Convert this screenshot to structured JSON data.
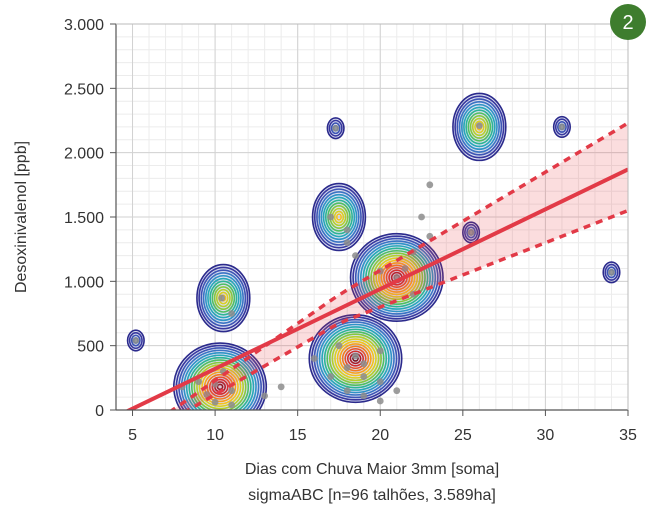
{
  "chart_data": {
    "type": "scatter",
    "badge": "2",
    "xlabel": "Dias com Chuva Maior 3mm [soma]",
    "subtitle": "sigmaABC [n=96 talhões, 3.589ha]",
    "ylabel": "Desoxinivalenol [ppb]",
    "xlim": [
      4,
      35
    ],
    "ylim": [
      0,
      3000
    ],
    "x_ticks": [
      5,
      10,
      15,
      20,
      25,
      30,
      35
    ],
    "x_tick_labels": [
      "5",
      "10",
      "15",
      "20",
      "25",
      "30",
      "35"
    ],
    "y_ticks": [
      0,
      500,
      1000,
      1500,
      2000,
      2500,
      3000
    ],
    "y_tick_labels": [
      "0",
      "500",
      "1.000",
      "1.500",
      "2.000",
      "2.500",
      "3.000"
    ],
    "grid": true,
    "regression": {
      "slope": 62,
      "intercept": -300,
      "ci_upper_at_35": 2230,
      "ci_lower_at_35": 1550
    },
    "density_peaks": [
      {
        "x": 10.3,
        "y": 180,
        "size": "large"
      },
      {
        "x": 10.5,
        "y": 870,
        "size": "medium"
      },
      {
        "x": 17.5,
        "y": 1500,
        "size": "medium"
      },
      {
        "x": 18.5,
        "y": 400,
        "size": "large"
      },
      {
        "x": 21,
        "y": 1030,
        "size": "large"
      },
      {
        "x": 17.3,
        "y": 2190,
        "size": "small"
      },
      {
        "x": 26,
        "y": 2200,
        "size": "medium"
      },
      {
        "x": 31,
        "y": 2200,
        "size": "small"
      },
      {
        "x": 34,
        "y": 1070,
        "size": "small"
      },
      {
        "x": 5.2,
        "y": 540,
        "size": "small"
      },
      {
        "x": 25.5,
        "y": 1380,
        "size": "small"
      }
    ],
    "points": [
      {
        "x": 5.2,
        "y": 540
      },
      {
        "x": 8,
        "y": 180
      },
      {
        "x": 9,
        "y": 220
      },
      {
        "x": 9.5,
        "y": 120
      },
      {
        "x": 10,
        "y": 200
      },
      {
        "x": 10,
        "y": 60
      },
      {
        "x": 10.5,
        "y": 300
      },
      {
        "x": 11,
        "y": 150
      },
      {
        "x": 11,
        "y": 40
      },
      {
        "x": 10.4,
        "y": 870
      },
      {
        "x": 11,
        "y": 750
      },
      {
        "x": 13,
        "y": 110
      },
      {
        "x": 14,
        "y": 180
      },
      {
        "x": 16,
        "y": 400
      },
      {
        "x": 17,
        "y": 260
      },
      {
        "x": 17.5,
        "y": 500
      },
      {
        "x": 18,
        "y": 330
      },
      {
        "x": 18,
        "y": 150
      },
      {
        "x": 18.5,
        "y": 420
      },
      {
        "x": 19,
        "y": 360
      },
      {
        "x": 19,
        "y": 260
      },
      {
        "x": 19,
        "y": 110
      },
      {
        "x": 20,
        "y": 460
      },
      {
        "x": 20,
        "y": 220
      },
      {
        "x": 20,
        "y": 70
      },
      {
        "x": 21,
        "y": 150
      },
      {
        "x": 17,
        "y": 1500
      },
      {
        "x": 18,
        "y": 1400
      },
      {
        "x": 18,
        "y": 1300
      },
      {
        "x": 18.5,
        "y": 1200
      },
      {
        "x": 17.3,
        "y": 2190
      },
      {
        "x": 20,
        "y": 1080
      },
      {
        "x": 21,
        "y": 1030
      },
      {
        "x": 21.5,
        "y": 1100
      },
      {
        "x": 22,
        "y": 900
      },
      {
        "x": 22,
        "y": 1230
      },
      {
        "x": 22.5,
        "y": 1500
      },
      {
        "x": 23,
        "y": 1750
      },
      {
        "x": 23,
        "y": 1350
      },
      {
        "x": 25.5,
        "y": 1380
      },
      {
        "x": 26,
        "y": 2210
      },
      {
        "x": 31,
        "y": 2200
      },
      {
        "x": 34,
        "y": 1070
      }
    ]
  }
}
